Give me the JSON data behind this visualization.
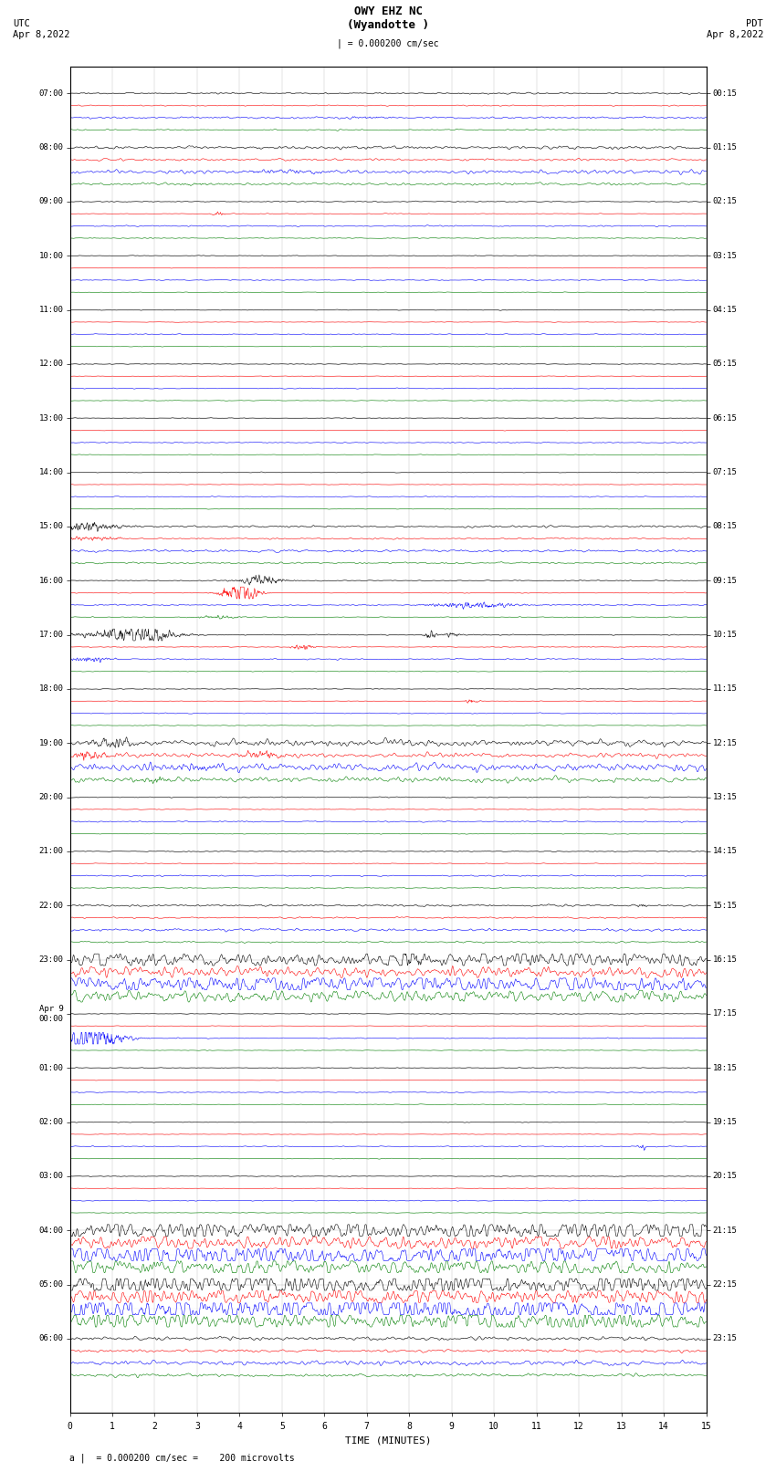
{
  "title_line1": "OWY EHZ NC",
  "title_line2": "(Wyandotte )",
  "scale_label": "| = 0.000200 cm/sec",
  "utc_label": "UTC",
  "utc_date": "Apr 8,2022",
  "pdt_label": "PDT",
  "pdt_date": "Apr 8,2022",
  "bottom_label": "a |  = 0.000200 cm/sec =    200 microvolts",
  "xlabel": "TIME (MINUTES)",
  "bg_color": "#ffffff",
  "trace_colors": [
    "black",
    "red",
    "blue",
    "green"
  ],
  "num_rows": 24,
  "traces_per_row": 4,
  "minutes_per_row": 15,
  "utc_times": [
    "07:00",
    "08:00",
    "09:00",
    "10:00",
    "11:00",
    "12:00",
    "13:00",
    "14:00",
    "15:00",
    "16:00",
    "17:00",
    "18:00",
    "19:00",
    "20:00",
    "21:00",
    "22:00",
    "23:00",
    "Apr 9\n00:00",
    "01:00",
    "02:00",
    "03:00",
    "04:00",
    "05:00",
    "06:00"
  ],
  "pdt_times": [
    "00:15",
    "01:15",
    "02:15",
    "03:15",
    "04:15",
    "05:15",
    "06:15",
    "07:15",
    "08:15",
    "09:15",
    "10:15",
    "11:15",
    "12:15",
    "13:15",
    "14:15",
    "15:15",
    "16:15",
    "17:15",
    "18:15",
    "19:15",
    "20:15",
    "21:15",
    "22:15",
    "23:15"
  ],
  "noise_amps": [
    0.06,
    0.12,
    0.04,
    0.03,
    0.03,
    0.03,
    0.03,
    0.03,
    0.08,
    0.04,
    0.04,
    0.03,
    0.25,
    0.04,
    0.04,
    0.08,
    0.6,
    0.03,
    0.03,
    0.03,
    0.03,
    0.8,
    0.9,
    0.15
  ],
  "lw": 0.4
}
